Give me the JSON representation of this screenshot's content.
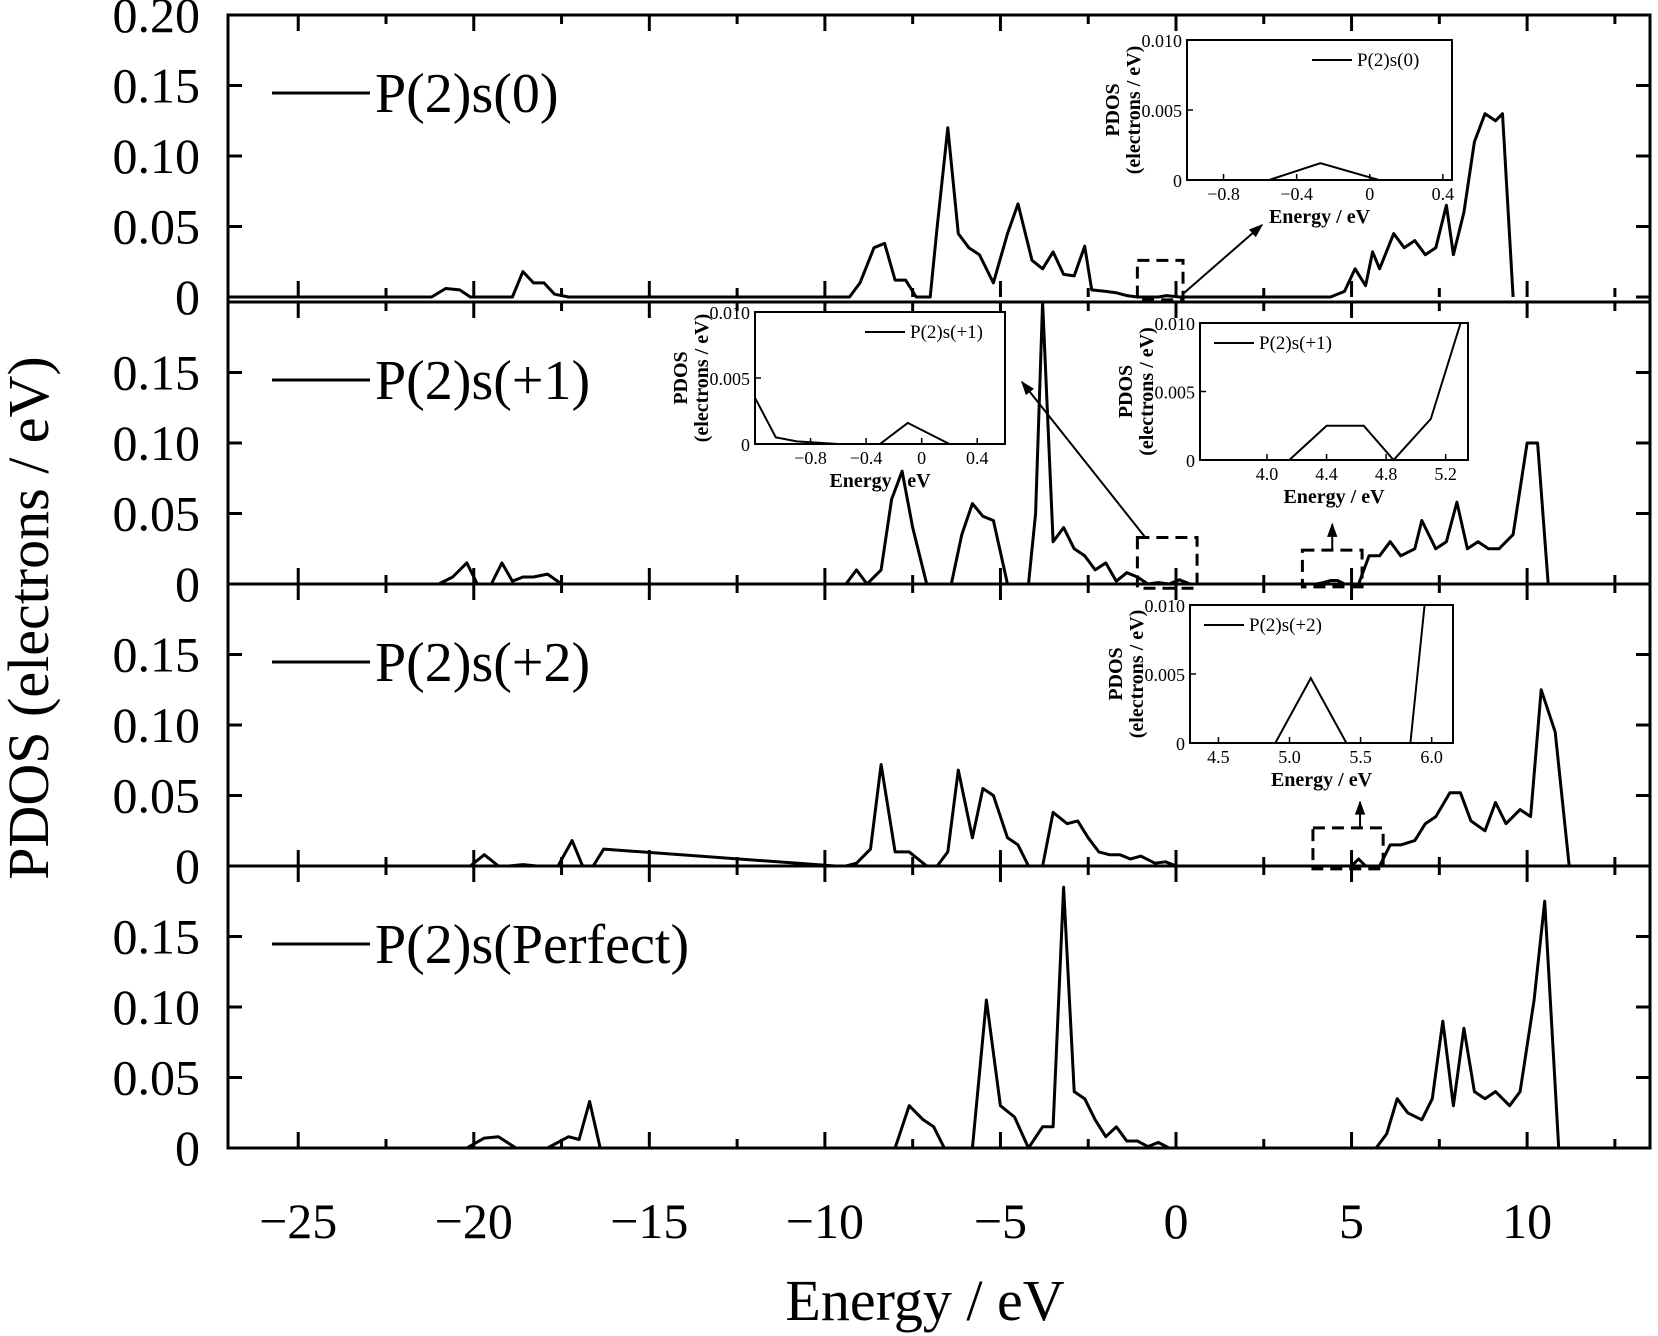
{
  "chart_data": {
    "type": "line",
    "xlabel": "Energy / eV",
    "ylabel": "PDOS (electrons / eV)",
    "xlim": [
      -27,
      13.5
    ],
    "xticks": [
      -25,
      -20,
      -15,
      -10,
      -5,
      0,
      5,
      10
    ],
    "xtick_labels": [
      "−25",
      "−20",
      "−15",
      "−10",
      "−5",
      "0",
      "5",
      "10"
    ],
    "panels": [
      {
        "legend": "P(2)s(0)",
        "ylim": [
          0,
          0.2
        ],
        "yticks": [
          0,
          0.05,
          0.1,
          0.15,
          0.2
        ],
        "ytick_labels": [
          "0",
          "0.05",
          "0.10",
          "0.15",
          "0.20"
        ],
        "series": {
          "x": [
            -27.0,
            -26.0,
            -25.2,
            -24.5,
            -22.0,
            -21.2,
            -20.8,
            -20.4,
            -20.1,
            -19.6,
            -19.2,
            -18.9,
            -18.6,
            -18.3,
            -18.0,
            -17.7,
            -17.3,
            -17.0,
            -9.8,
            -9.3,
            -9.0,
            -8.6,
            -8.3,
            -8.0,
            -7.7,
            -7.4,
            -7.0,
            -6.8,
            -6.5,
            -6.2,
            -5.9,
            -5.6,
            -5.2,
            -4.8,
            -4.5,
            -4.1,
            -3.8,
            -3.5,
            -3.2,
            -2.9,
            -2.6,
            -2.4,
            -2.0,
            -1.7,
            -1.4,
            -1.1,
            -0.8,
            -0.5,
            -0.27,
            0.1,
            0.3,
            4.4,
            4.8,
            5.1,
            5.4,
            5.6,
            5.8,
            6.2,
            6.5,
            6.8,
            7.1,
            7.4,
            7.7,
            7.9,
            8.2,
            8.5,
            8.8,
            9.1,
            9.3,
            9.6
          ],
          "y": [
            0.0,
            0.0,
            0.0,
            0.0,
            0.0,
            0.0,
            0.006,
            0.005,
            0.0,
            0.0,
            0.0,
            0.0,
            0.018,
            0.01,
            0.01,
            0.002,
            0.0,
            0.0,
            0.0,
            0.0,
            0.01,
            0.035,
            0.038,
            0.012,
            0.012,
            0.0,
            0.0,
            0.05,
            0.12,
            0.045,
            0.035,
            0.03,
            0.01,
            0.045,
            0.066,
            0.026,
            0.02,
            0.032,
            0.016,
            0.015,
            0.036,
            0.005,
            0.004,
            0.003,
            0.001,
            0.0,
            0.0,
            0.0,
            0.001,
            0.0,
            0.0,
            0.0,
            0.004,
            0.02,
            0.008,
            0.032,
            0.02,
            0.045,
            0.035,
            0.04,
            0.03,
            0.035,
            0.065,
            0.03,
            0.06,
            0.11,
            0.13,
            0.125,
            0.13,
            0.0
          ]
        }
      },
      {
        "legend": "P(2)s(+1)",
        "ylim": [
          0,
          0.2
        ],
        "yticks": [
          0,
          0.05,
          0.1,
          0.15
        ],
        "ytick_labels": [
          "0",
          "0.05",
          "0.10",
          "0.15"
        ],
        "series": {
          "x": [
            -27.0,
            -21.0,
            -20.6,
            -20.2,
            -19.9,
            -19.5,
            -19.2,
            -18.9,
            -18.6,
            -18.3,
            -17.9,
            -17.5,
            -17.2,
            -9.8,
            -9.4,
            -9.1,
            -8.8,
            -8.4,
            -8.1,
            -7.8,
            -7.5,
            -7.1,
            -6.8,
            -6.4,
            -6.1,
            -5.8,
            -5.5,
            -5.2,
            -4.8,
            -4.5,
            -4.2,
            -4.0,
            -3.8,
            -3.5,
            -3.2,
            -2.9,
            -2.6,
            -2.3,
            -2.0,
            -1.7,
            -1.4,
            -1.1,
            -0.8,
            -0.5,
            -0.2,
            0.1,
            0.4,
            4.0,
            4.2,
            4.4,
            4.6,
            4.8,
            5.2,
            5.5,
            5.8,
            6.1,
            6.4,
            6.8,
            7.0,
            7.4,
            7.7,
            8.0,
            8.3,
            8.6,
            8.9,
            9.2,
            9.6,
            10.0,
            10.3,
            10.6
          ],
          "y": [
            0.0,
            0.0,
            0.005,
            0.015,
            0.0,
            0.0,
            0.015,
            0.002,
            0.005,
            0.005,
            0.007,
            0.0,
            0.0,
            0.0,
            0.0,
            0.01,
            0.0,
            0.01,
            0.06,
            0.08,
            0.04,
            0.0,
            0.0,
            0.0,
            0.035,
            0.057,
            0.048,
            0.045,
            0.0,
            0.0,
            0.0,
            0.05,
            0.2,
            0.03,
            0.04,
            0.025,
            0.02,
            0.01,
            0.015,
            0.002,
            0.008,
            0.005,
            0.0,
            0.001,
            0.0,
            0.003,
            0.0,
            0.0,
            0.001,
            0.0025,
            0.0025,
            0.0,
            0.0,
            0.02,
            0.02,
            0.03,
            0.02,
            0.025,
            0.045,
            0.025,
            0.03,
            0.058,
            0.025,
            0.03,
            0.025,
            0.025,
            0.035,
            0.1,
            0.1,
            0.0
          ]
        }
      },
      {
        "legend": "P(2)s(+2)",
        "ylim": [
          0,
          0.2
        ],
        "yticks": [
          0,
          0.05,
          0.1,
          0.15
        ],
        "ytick_labels": [
          "0",
          "0.05",
          "0.10",
          "0.15"
        ],
        "series": {
          "x": [
            -27.0,
            -20.5,
            -20.1,
            -19.7,
            -19.3,
            -19.0,
            -18.6,
            -18.2,
            -17.6,
            -17.2,
            -16.9,
            -16.6,
            -16.3,
            -9.7,
            -9.4,
            -9.1,
            -8.7,
            -8.4,
            -8.0,
            -7.6,
            -7.1,
            -6.8,
            -6.5,
            -6.2,
            -5.8,
            -5.5,
            -5.2,
            -4.8,
            -4.5,
            -4.2,
            -3.8,
            -3.5,
            -3.1,
            -2.8,
            -2.5,
            -2.2,
            -1.9,
            -1.6,
            -1.3,
            -1.0,
            -0.6,
            -0.3,
            0.0,
            5.0,
            5.2,
            5.4,
            5.8,
            6.1,
            6.4,
            6.8,
            7.1,
            7.4,
            7.8,
            8.1,
            8.4,
            8.8,
            9.1,
            9.4,
            9.8,
            10.1,
            10.4,
            10.8,
            11.2
          ],
          "y": [
            0.0,
            0.0,
            0.0,
            0.008,
            0.0,
            0.0,
            0.001,
            0.0,
            0.0,
            0.018,
            0.0,
            0.0,
            0.012,
            0.0,
            0.0,
            0.002,
            0.012,
            0.072,
            0.01,
            0.01,
            0.0,
            0.0,
            0.01,
            0.068,
            0.02,
            0.055,
            0.05,
            0.02,
            0.015,
            0.0,
            0.0,
            0.038,
            0.03,
            0.032,
            0.02,
            0.01,
            0.008,
            0.008,
            0.005,
            0.007,
            0.002,
            0.003,
            0.0,
            0.0,
            0.005,
            0.0,
            0.0,
            0.015,
            0.015,
            0.018,
            0.03,
            0.035,
            0.052,
            0.052,
            0.032,
            0.025,
            0.045,
            0.03,
            0.04,
            0.035,
            0.125,
            0.095,
            0.0
          ]
        }
      },
      {
        "legend": "P(2)s(Perfect)",
        "ylim": [
          0,
          0.2
        ],
        "yticks": [
          0,
          0.05,
          0.1,
          0.15
        ],
        "ytick_labels": [
          "0",
          "0.05",
          "0.10",
          "0.15"
        ],
        "series": {
          "x": [
            -27.0,
            -24.0,
            -20.2,
            -19.7,
            -19.3,
            -18.8,
            -18.4,
            -17.9,
            -17.3,
            -17.0,
            -16.7,
            -16.4,
            -16.2,
            -8.4,
            -8.0,
            -7.6,
            -7.2,
            -6.9,
            -6.6,
            -5.8,
            -5.4,
            -5.0,
            -4.6,
            -4.2,
            -3.8,
            -3.5,
            -3.2,
            -2.9,
            -2.6,
            -2.3,
            -2.0,
            -1.7,
            -1.4,
            -1.1,
            -0.8,
            -0.5,
            -0.2,
            5.7,
            6.0,
            6.3,
            6.6,
            7.0,
            7.3,
            7.6,
            7.9,
            8.2,
            8.5,
            8.8,
            9.1,
            9.5,
            9.8,
            10.2,
            10.5,
            10.9
          ],
          "y": [
            0.0,
            0.0,
            0.0,
            0.007,
            0.008,
            0.0,
            0.0,
            0.0,
            0.008,
            0.006,
            0.033,
            0.0,
            0.0,
            0.0,
            0.0,
            0.03,
            0.02,
            0.015,
            0.0,
            0.0,
            0.105,
            0.03,
            0.022,
            0.0,
            0.015,
            0.015,
            0.185,
            0.04,
            0.035,
            0.02,
            0.008,
            0.015,
            0.005,
            0.005,
            0.001,
            0.004,
            0.0,
            0.0,
            0.01,
            0.035,
            0.025,
            0.02,
            0.035,
            0.09,
            0.03,
            0.085,
            0.04,
            0.035,
            0.04,
            0.03,
            0.04,
            0.105,
            0.175,
            0.0
          ]
        }
      }
    ],
    "insets": [
      {
        "panel": 0,
        "legend": "P(2)s(0)",
        "ylabel_line1": "PDOS",
        "ylabel_line2": "(electrons / eV)",
        "xlabel": "Energy / eV",
        "xlim": [
          -1.0,
          0.45
        ],
        "ylim": [
          0,
          0.01
        ],
        "xticks": [
          -0.8,
          -0.4,
          0,
          0.4
        ],
        "xtick_labels": [
          "−0.8",
          "−0.4",
          "0",
          "0.4"
        ],
        "yticks": [
          0,
          0.005,
          0.01
        ],
        "ytick_labels": [
          "0",
          "0.005",
          "0.010"
        ],
        "series": {
          "x": [
            -1.0,
            -0.55,
            -0.27,
            0.05,
            0.45
          ],
          "y": [
            0.0,
            0.0,
            0.0012,
            0.0,
            0.0
          ]
        }
      },
      {
        "panel": 1,
        "legend": "P(2)s(+1)",
        "ylabel_line1": "PDOS",
        "ylabel_line2": "(electrons / eV)",
        "xlabel": "Energy / eV",
        "xlim": [
          -1.2,
          0.6
        ],
        "ylim": [
          0,
          0.01
        ],
        "xticks": [
          -0.8,
          -0.4,
          0,
          0.4
        ],
        "xtick_labels": [
          "−0.8",
          "−0.4",
          "0",
          "0.4"
        ],
        "yticks": [
          0,
          0.005,
          0.01
        ],
        "ytick_labels": [
          "0",
          "0.005",
          "0.010"
        ],
        "series": {
          "x": [
            -1.2,
            -1.05,
            -0.9,
            -0.6,
            -0.3,
            -0.1,
            0.2,
            0.6
          ],
          "y": [
            0.0035,
            0.0005,
            0.0002,
            0.0,
            0.0,
            0.0016,
            0.0,
            0.0
          ]
        }
      },
      {
        "panel": 1,
        "legend": "P(2)s(+1)",
        "ylabel_line1": "PDOS",
        "ylabel_line2": "(electrons / eV)",
        "xlabel": "Energy / eV",
        "xlim": [
          3.55,
          5.35
        ],
        "ylim": [
          0,
          0.01
        ],
        "xticks": [
          4.0,
          4.4,
          4.8,
          5.2
        ],
        "xtick_labels": [
          "4.0",
          "4.4",
          "4.8",
          "5.2"
        ],
        "yticks": [
          0,
          0.005,
          0.01
        ],
        "ytick_labels": [
          "0",
          "0.005",
          "0.010"
        ],
        "series": {
          "x": [
            3.55,
            4.15,
            4.4,
            4.65,
            4.85,
            5.1,
            5.3
          ],
          "y": [
            0.0,
            0.0,
            0.0025,
            0.0025,
            0.0,
            0.003,
            0.01
          ]
        }
      },
      {
        "panel": 2,
        "legend": "P(2)s(+2)",
        "ylabel_line1": "PDOS",
        "ylabel_line2": "(electrons / eV)",
        "xlabel": "Energy / eV",
        "xlim": [
          4.3,
          6.15
        ],
        "ylim": [
          0,
          0.01
        ],
        "xticks": [
          4.5,
          5.0,
          5.5,
          6.0
        ],
        "xtick_labels": [
          "4.5",
          "5.0",
          "5.5",
          "6.0"
        ],
        "yticks": [
          0,
          0.005,
          0.01
        ],
        "ytick_labels": [
          "0",
          "0.005",
          "0.010"
        ],
        "series": {
          "x": [
            4.3,
            4.9,
            5.15,
            5.4,
            5.85,
            5.95
          ],
          "y": [
            0.0,
            0.0,
            0.0047,
            0.0,
            0.0,
            0.01
          ]
        }
      }
    ],
    "highlight_boxes": [
      {
        "panel": 0,
        "x": [
          -1.1,
          0.2
        ],
        "y": [
          -0.002,
          0.026
        ]
      },
      {
        "panel": 1,
        "x": [
          -1.1,
          0.6
        ],
        "y": [
          -0.003,
          0.033
        ]
      },
      {
        "panel": 1,
        "x": [
          3.6,
          5.3
        ],
        "y": [
          -0.002,
          0.024
        ]
      },
      {
        "panel": 2,
        "x": [
          3.9,
          5.9
        ],
        "y": [
          -0.002,
          0.027
        ]
      }
    ],
    "line_color": "#000000"
  }
}
